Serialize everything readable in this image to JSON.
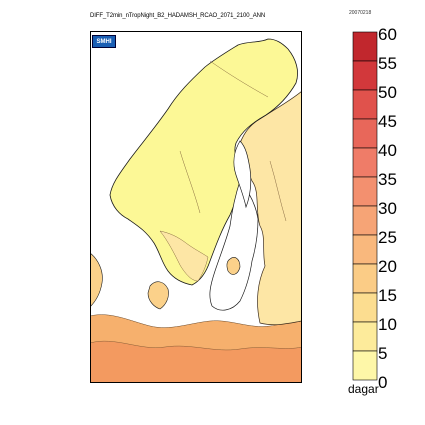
{
  "title": "DIFF_T2min_nTropNight_B2_HADAMSH_RCAO_2071_2100_ANN",
  "date_stamp": "20070218",
  "logo_text": "SMHI",
  "legend": {
    "unit": "dagar",
    "labels": [
      "60",
      "55",
      "50",
      "45",
      "40",
      "35",
      "30",
      "25",
      "20",
      "15",
      "10",
      "5",
      "0"
    ],
    "colors": [
      "#c1272d",
      "#d2383b",
      "#e0524c",
      "#e8675a",
      "#ef7c68",
      "#f3906f",
      "#f6a476",
      "#f9b87d",
      "#fbcc86",
      "#fcdd90",
      "#fdeb9b",
      "#fef7a8"
    ]
  },
  "map": {
    "sea_color": "#ffffff",
    "land_north_color": "#fcf896",
    "land_south_colors": [
      "#fde6a5",
      "#fbd18a",
      "#f6b06d",
      "#f39a60"
    ]
  }
}
